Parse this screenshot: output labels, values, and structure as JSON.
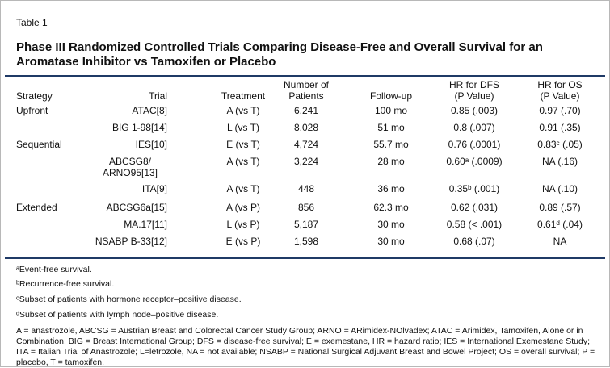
{
  "header": {
    "label": "Table 1",
    "title": "Phase III Randomized Controlled Trials Comparing Disease-Free and Overall Survival for an Aromatase Inhibitor vs Tamoxifen or Placebo"
  },
  "table": {
    "columns": [
      [
        "Strategy"
      ],
      [
        "Trial"
      ],
      [
        "Treatment"
      ],
      [
        "Number of",
        "Patients"
      ],
      [
        "Follow-up"
      ],
      [
        "HR for DFS",
        "(P Value)"
      ],
      [
        "HR for OS",
        "(P Value)"
      ]
    ],
    "rows": [
      [
        "Upfront",
        "ATAC[8]",
        "A (vs T)",
        "6,241",
        "100 mo",
        "0.85 (.003)",
        "0.97 (.70)"
      ],
      [
        null,
        "BIG 1-98[14]",
        "L (vs T)",
        "8,028",
        "51 mo",
        "0.8 (.007)",
        "0.91 (.35)"
      ],
      [
        "Sequential",
        "IES[10]",
        "E (vs T)",
        "4,724",
        "55.7 mo",
        "0.76 (.0001)",
        "0.83ᶜ (.05)"
      ],
      [
        null,
        "ABCSG8/ ARNO95[13]",
        "A (vs T)",
        "3,224",
        "28 mo",
        "0.60ᵃ (.0009)",
        "NA (.16)"
      ],
      [
        null,
        "ITA[9]",
        "A (vs T)",
        "448",
        "36 mo",
        "0.35ᵇ (.001)",
        "NA (.10)"
      ],
      [
        "Extended",
        "ABCSG6a[15]",
        "A (vs P)",
        "856",
        "62.3 mo",
        "0.62 (.031)",
        "0.89 (.57)"
      ],
      [
        null,
        "MA.17[11]",
        "L (vs P)",
        "5,187",
        "30 mo",
        "0.58 (< .001)",
        "0.61ᵈ (.04)"
      ],
      [
        null,
        "NSABP B-33[12]",
        "E (vs P)",
        "1,598",
        "30 mo",
        "0.68 (.07)",
        "NA"
      ]
    ]
  },
  "footnotes": [
    "ᵃEvent-free survival.",
    "ᵇRecurrence-free survival.",
    "ᶜSubset of patients with hormone receptor–positive disease.",
    "ᵈSubset of patients with lymph node–positive disease."
  ],
  "abbreviations": "A = anastrozole, ABCSG = Austrian Breast and Colorectal Cancer Study Group; ARNO = ARimidex-NOlvadex; ATAC = Arimidex, Tamoxifen, Alone or in Combination; BIG = Breast International Group; DFS = disease-free survival; E = exemestane, HR = hazard ratio; IES = International Exemestane Study; ITA = Italian Trial of Anastrozole; L=letrozole, NA = not available; NSABP = National Surgical Adjuvant Breast and Bowel Project; OS = overall survival; P = placebo, T = tamoxifen."
}
